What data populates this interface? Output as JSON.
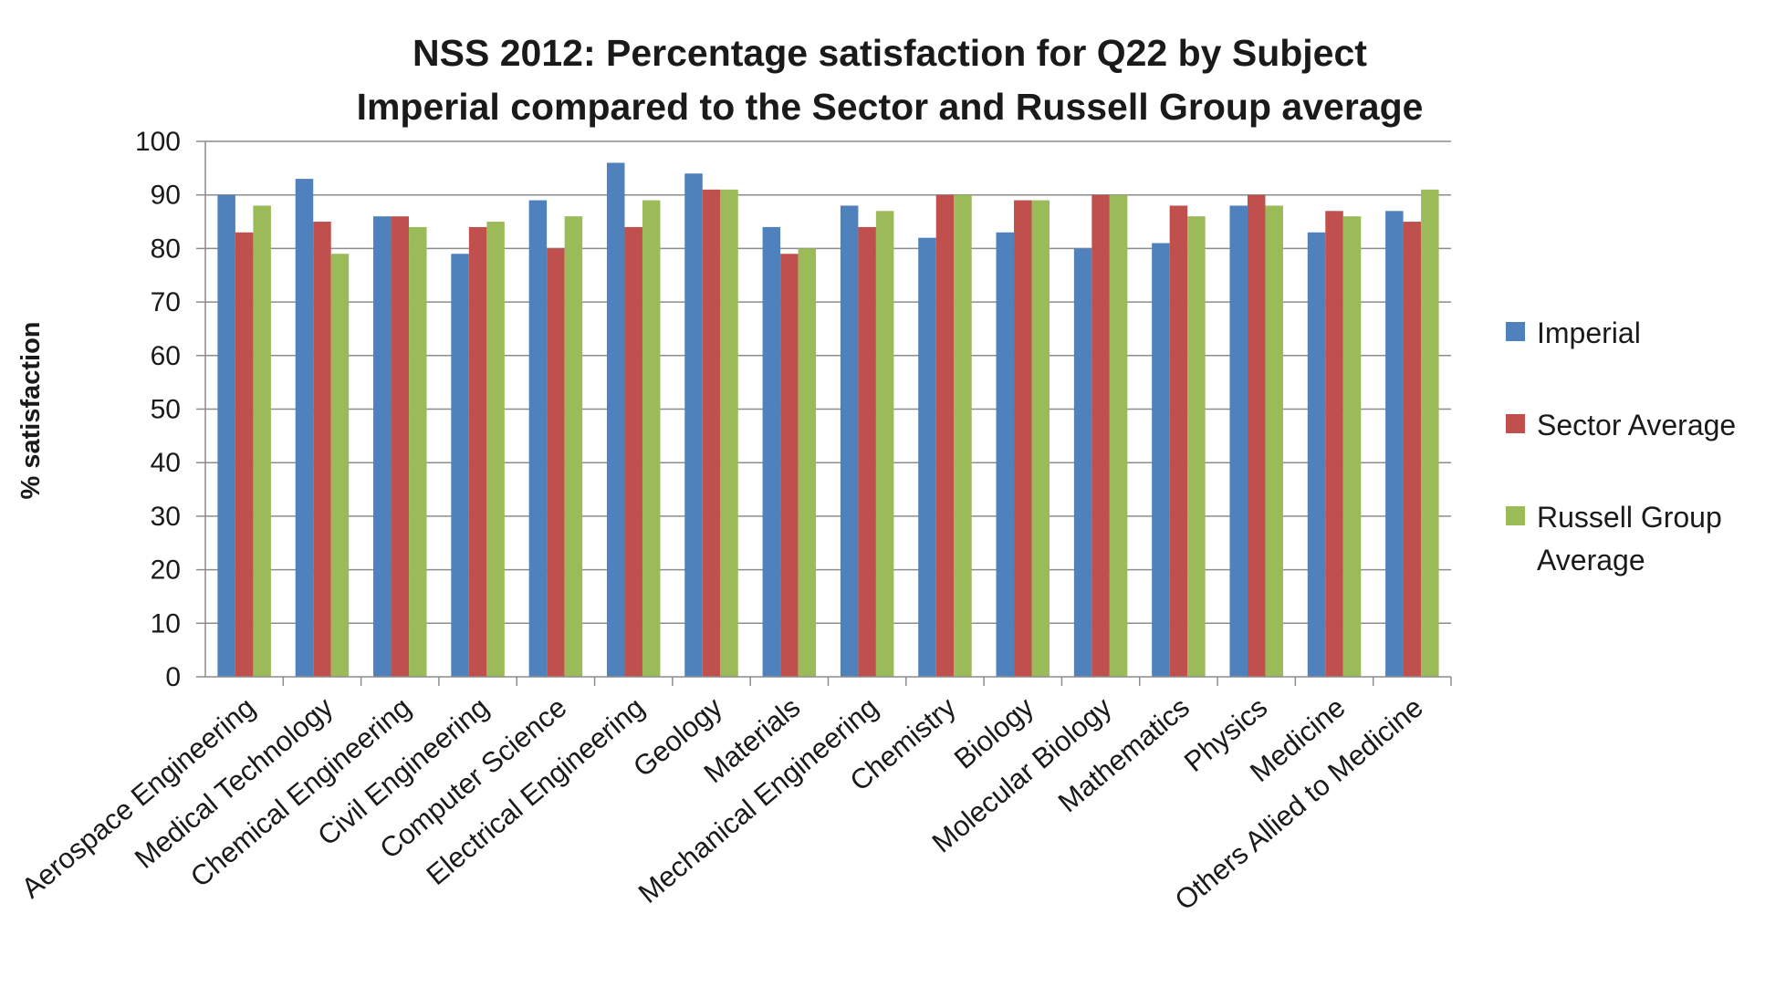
{
  "chart_data": {
    "type": "bar",
    "title_lines": [
      "NSS 2012: Percentage satisfaction for Q22 by Subject",
      "Imperial compared to the Sector and Russell Group average"
    ],
    "xlabel": "",
    "ylabel": "% satisfaction",
    "ylim": [
      0,
      100
    ],
    "yticks": [
      0,
      10,
      20,
      30,
      40,
      50,
      60,
      70,
      80,
      90,
      100
    ],
    "grid": true,
    "legend_position": "right",
    "categories": [
      "Aerospace Engineering",
      "Medical Technology",
      "Chemical Engineering",
      "Civil Engineering",
      "Computer Science",
      "Electrical Engineering",
      "Geology",
      "Materials",
      "Mechanical Engineering",
      "Chemistry",
      "Biology",
      "Molecular Biology",
      "Mathematics",
      "Physics",
      "Medicine",
      "Others Allied to Medicine"
    ],
    "series": [
      {
        "name": "Imperial",
        "legend_lines": [
          "Imperial"
        ],
        "color": "#4F81BD",
        "values": [
          90,
          93,
          86,
          79,
          89,
          96,
          94,
          84,
          88,
          82,
          83,
          80,
          81,
          88,
          83,
          87
        ]
      },
      {
        "name": "Sector Average",
        "legend_lines": [
          "Sector Average"
        ],
        "color": "#C0504D",
        "values": [
          83,
          85,
          86,
          84,
          80,
          84,
          91,
          79,
          84,
          90,
          89,
          90,
          88,
          90,
          87,
          85
        ]
      },
      {
        "name": "Russell Group Average",
        "legend_lines": [
          "Russell Group",
          "Average"
        ],
        "color": "#9BBB59",
        "values": [
          88,
          79,
          84,
          85,
          86,
          89,
          91,
          80,
          87,
          90,
          89,
          90,
          86,
          88,
          86,
          91
        ]
      }
    ]
  }
}
